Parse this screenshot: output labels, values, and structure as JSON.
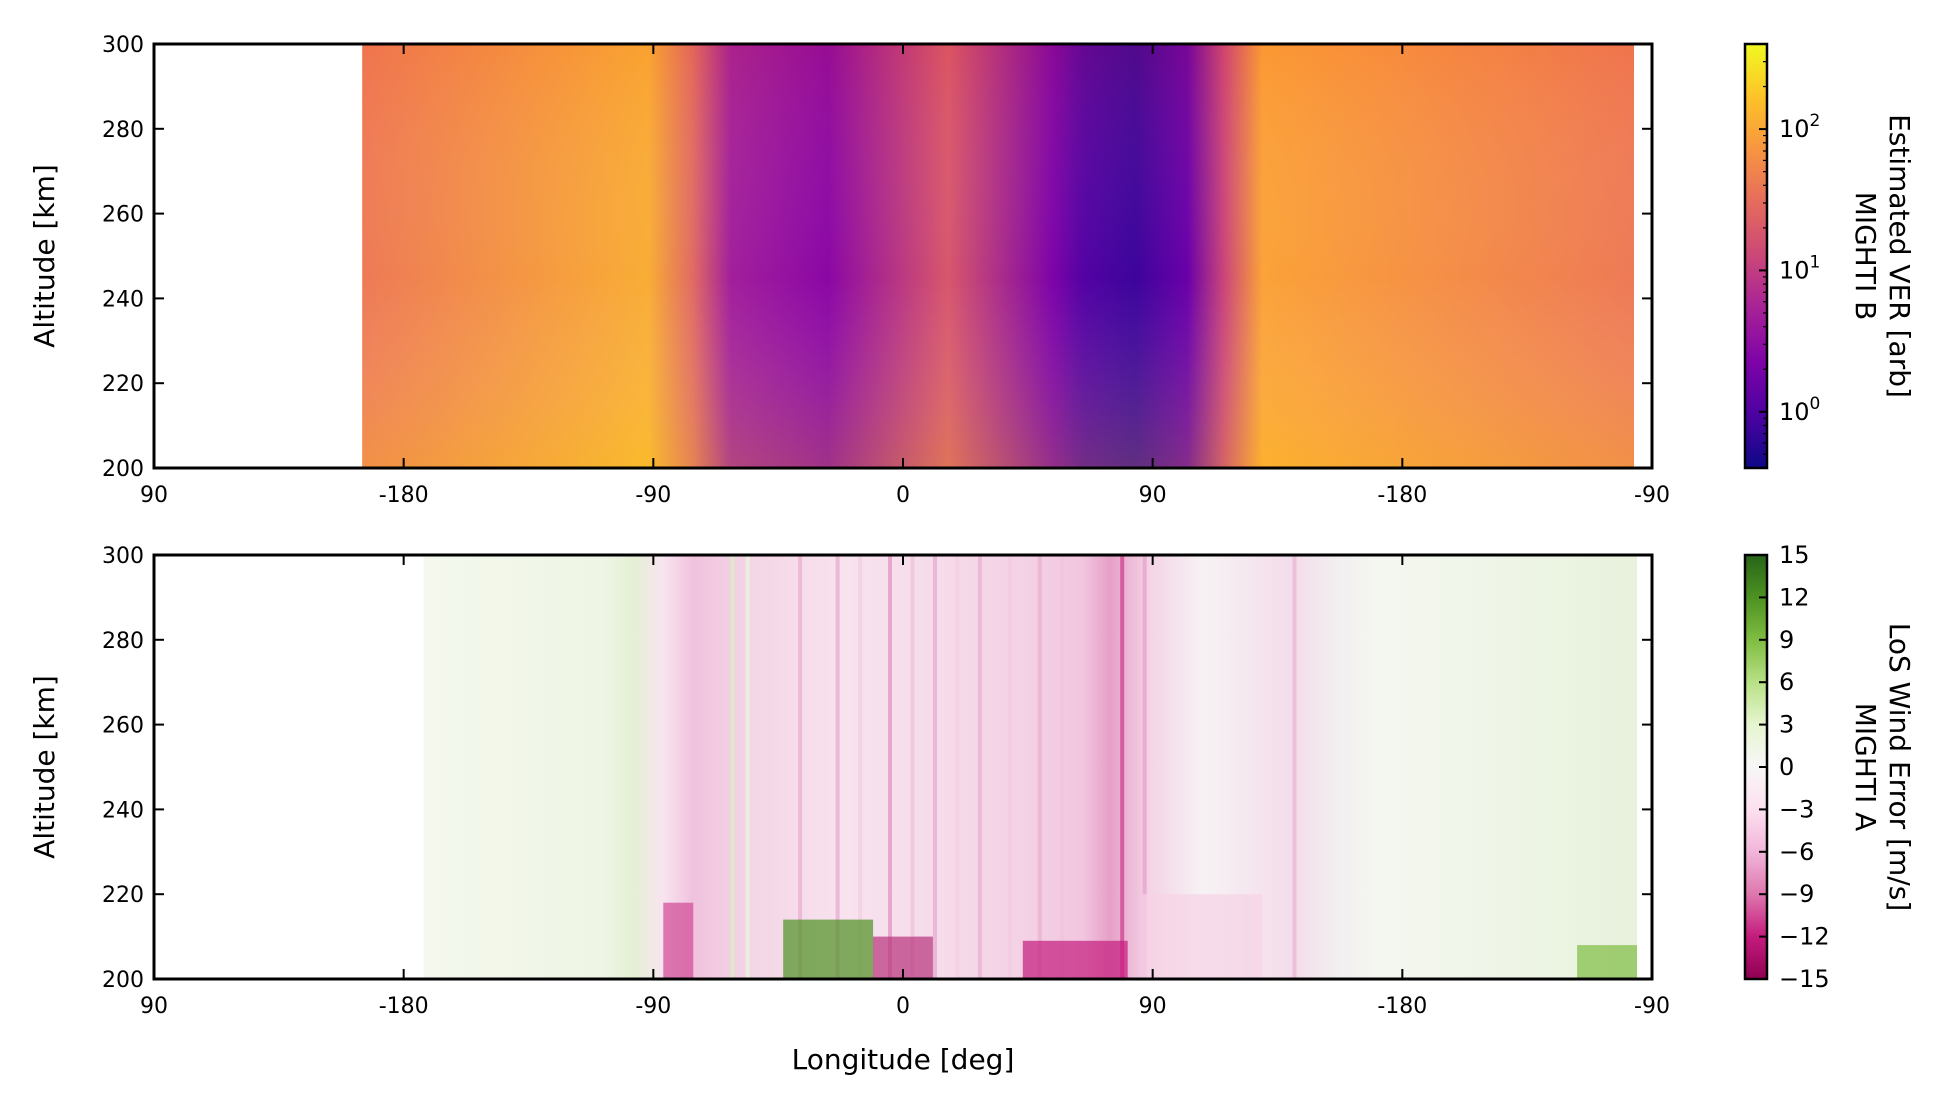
{
  "chart_data": [
    {
      "type": "heatmap",
      "ylabel": "Altitude [km]",
      "xlabel": "",
      "x_ticks": [
        "90",
        "-180",
        "-90",
        "0",
        "90",
        "-180",
        "-90"
      ],
      "y_ticks": [
        "300",
        "280",
        "260",
        "240",
        "220",
        "200"
      ],
      "ylim": [
        200,
        300
      ],
      "colormap": "plasma",
      "colorbar": {
        "label_lines": [
          "Estimated VER [arb]",
          "MIGHTI B"
        ],
        "scale": "log",
        "range": [
          0.4,
          400
        ],
        "ticks": [
          {
            "value": 1,
            "base": "10",
            "exp": "0"
          },
          {
            "value": 10,
            "base": "10",
            "exp": "1"
          },
          {
            "value": 100,
            "base": "10",
            "exp": "2"
          }
        ]
      },
      "data_extent": {
        "x_start_frac": 0.139,
        "x_end_frac": 0.988
      },
      "bands": [
        {
          "x": 0.139,
          "color": "#ee7a56"
        },
        {
          "x": 0.33,
          "color": "#f9ad35"
        },
        {
          "x": 0.36,
          "color": "#e06a63"
        },
        {
          "x": 0.385,
          "color": "#a21f9b"
        },
        {
          "x": 0.45,
          "color": "#8b07a5"
        },
        {
          "x": 0.53,
          "color": "#d8576b"
        },
        {
          "x": 0.6,
          "color": "#7d03a8"
        },
        {
          "x": 0.62,
          "color": "#5402a3"
        },
        {
          "x": 0.655,
          "color": "#3c049b"
        },
        {
          "x": 0.69,
          "color": "#6a00a8"
        },
        {
          "x": 0.715,
          "color": "#cc4778"
        },
        {
          "x": 0.74,
          "color": "#fba238"
        },
        {
          "x": 0.988,
          "color": "#ee7a56"
        }
      ]
    },
    {
      "type": "heatmap",
      "ylabel": "Altitude [km]",
      "xlabel": "Longitude [deg]",
      "x_ticks": [
        "90",
        "-180",
        "-90",
        "0",
        "90",
        "-180",
        "-90"
      ],
      "y_ticks": [
        "300",
        "280",
        "260",
        "240",
        "220",
        "200"
      ],
      "ylim": [
        200,
        300
      ],
      "colormap": "PiYG",
      "colorbar": {
        "label_lines": [
          "LoS Wind Error [m/s]",
          "MIGHTI A"
        ],
        "scale": "linear",
        "range": [
          -15,
          15
        ],
        "ticks": [
          "15",
          "12",
          "9",
          "6",
          "3",
          "0",
          "−3",
          "−6",
          "−9",
          "−12",
          "−15"
        ]
      },
      "data_extent": {
        "x_start_frac": 0.18,
        "x_end_frac": 0.99
      },
      "bands": [
        {
          "x": 0.18,
          "color": "#f4f8ee"
        },
        {
          "x": 0.3,
          "color": "#eef5e4"
        },
        {
          "x": 0.32,
          "color": "#e4f0d4"
        },
        {
          "x": 0.34,
          "color": "#f8e4f0"
        },
        {
          "x": 0.36,
          "color": "#f0c2dd"
        },
        {
          "x": 0.4,
          "color": "#f4d6e7"
        },
        {
          "x": 0.46,
          "color": "#f8e2ee"
        },
        {
          "x": 0.52,
          "color": "#f6dceb"
        },
        {
          "x": 0.58,
          "color": "#f4d2e5"
        },
        {
          "x": 0.62,
          "color": "#f1c6df"
        },
        {
          "x": 0.638,
          "color": "#e6a0c8"
        },
        {
          "x": 0.665,
          "color": "#f4d4e6"
        },
        {
          "x": 0.7,
          "color": "#f6f2f4"
        },
        {
          "x": 0.76,
          "color": "#f4dcea"
        },
        {
          "x": 0.79,
          "color": "#f2eff0"
        },
        {
          "x": 0.82,
          "color": "#f4f7f0"
        },
        {
          "x": 0.99,
          "color": "#e8f2dc"
        }
      ]
    }
  ]
}
